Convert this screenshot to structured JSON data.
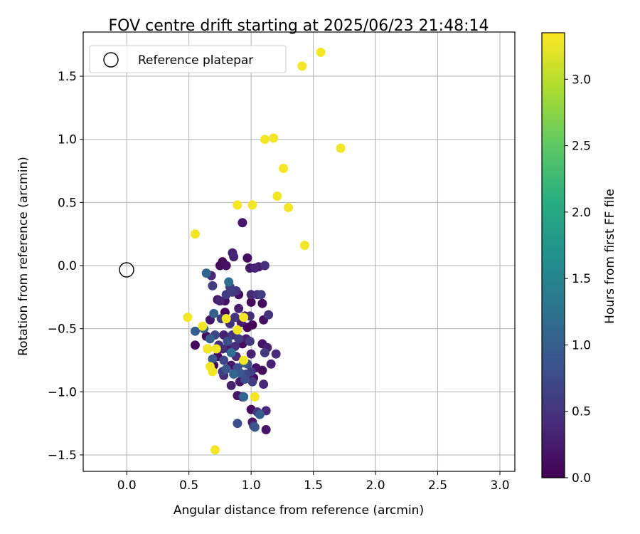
{
  "chart_data": {
    "type": "scatter",
    "title": "FOV centre drift starting at 2025/06/23 21:48:14",
    "xlabel": "Angular distance from reference (arcmin)",
    "ylabel": "Rotation from reference (arcmin)",
    "xlim": [
      -0.35,
      3.12
    ],
    "ylim": [
      -1.63,
      1.85
    ],
    "xticks": [
      0.0,
      0.5,
      1.0,
      1.5,
      2.0,
      2.5,
      3.0
    ],
    "xtick_labels": [
      "0.0",
      "0.5",
      "1.0",
      "1.5",
      "2.0",
      "2.5",
      "3.0"
    ],
    "yticks": [
      -1.5,
      -1.0,
      -0.5,
      0.0,
      0.5,
      1.0,
      1.5
    ],
    "ytick_labels": [
      "−1.5",
      "−1.0",
      "−0.5",
      "0.0",
      "0.5",
      "1.0",
      "1.5"
    ],
    "grid": true,
    "legend": {
      "position": "top-left",
      "entries": [
        "Reference platepar"
      ]
    },
    "reference_point": {
      "x": 0.0,
      "y": 0.0,
      "marker": "open-circle",
      "color": "#000000"
    },
    "colorbar": {
      "label": "Hours from first FF file",
      "colormap": "viridis",
      "min": 0.0,
      "max": 3.35,
      "ticks": [
        0.0,
        0.5,
        1.0,
        1.5,
        2.0,
        2.5,
        3.0
      ],
      "tick_labels": [
        "0.0",
        "0.5",
        "1.0",
        "1.5",
        "2.0",
        "2.5",
        "3.0"
      ]
    },
    "points": [
      {
        "x": 0.8,
        "y": 0.0,
        "t": 0.15
      },
      {
        "x": 0.85,
        "y": 0.1,
        "t": 0.3
      },
      {
        "x": 0.86,
        "y": 0.07,
        "t": 0.35
      },
      {
        "x": 0.97,
        "y": 0.06,
        "t": 0.1
      },
      {
        "x": 0.93,
        "y": 0.34,
        "t": 0.2
      },
      {
        "x": 0.99,
        "y": -0.02,
        "t": 0.2
      },
      {
        "x": 1.03,
        "y": -0.02,
        "t": 0.35
      },
      {
        "x": 1.06,
        "y": -0.01,
        "t": 0.25
      },
      {
        "x": 1.11,
        "y": 0.0,
        "t": 0.45
      },
      {
        "x": 0.75,
        "y": 0.0,
        "t": 0.1
      },
      {
        "x": 0.77,
        "y": 0.03,
        "t": 0.05
      },
      {
        "x": 0.68,
        "y": -0.08,
        "t": 0.4
      },
      {
        "x": 0.64,
        "y": -0.06,
        "t": 1.1
      },
      {
        "x": 0.69,
        "y": -0.16,
        "t": 0.6
      },
      {
        "x": 0.82,
        "y": -0.13,
        "t": 1.2
      },
      {
        "x": 0.83,
        "y": -0.17,
        "t": 0.6
      },
      {
        "x": 0.85,
        "y": -0.21,
        "t": 0.55
      },
      {
        "x": 0.88,
        "y": -0.2,
        "t": 0.5
      },
      {
        "x": 0.9,
        "y": -0.23,
        "t": 0.1
      },
      {
        "x": 0.8,
        "y": -0.23,
        "t": 0.6
      },
      {
        "x": 0.73,
        "y": -0.27,
        "t": 0.2
      },
      {
        "x": 0.75,
        "y": -0.28,
        "t": 0.35
      },
      {
        "x": 0.79,
        "y": -0.28,
        "t": 0.15
      },
      {
        "x": 1.0,
        "y": -0.23,
        "t": 0.4
      },
      {
        "x": 1.05,
        "y": -0.23,
        "t": 0.5
      },
      {
        "x": 1.08,
        "y": -0.23,
        "t": 0.6
      },
      {
        "x": 1.0,
        "y": -0.29,
        "t": 0.05
      },
      {
        "x": 1.09,
        "y": -0.3,
        "t": 0.1
      },
      {
        "x": 0.9,
        "y": -0.34,
        "t": 0.3
      },
      {
        "x": 0.79,
        "y": -0.37,
        "t": 0.05
      },
      {
        "x": 0.7,
        "y": -0.38,
        "t": 1.0
      },
      {
        "x": 0.67,
        "y": -0.43,
        "t": 0.2
      },
      {
        "x": 0.76,
        "y": -0.42,
        "t": 0.6
      },
      {
        "x": 0.8,
        "y": -0.42,
        "t": 0.05
      },
      {
        "x": 0.83,
        "y": -0.46,
        "t": 0.45
      },
      {
        "x": 0.87,
        "y": -0.41,
        "t": 0.5
      },
      {
        "x": 0.92,
        "y": -0.45,
        "t": 0.25
      },
      {
        "x": 0.95,
        "y": -0.4,
        "t": 0.15
      },
      {
        "x": 0.99,
        "y": -0.4,
        "t": 0.45
      },
      {
        "x": 1.01,
        "y": -0.47,
        "t": 0.05
      },
      {
        "x": 0.97,
        "y": -0.49,
        "t": 0.05
      },
      {
        "x": 1.1,
        "y": -0.43,
        "t": 0.15
      },
      {
        "x": 1.14,
        "y": -0.39,
        "t": 0.5
      },
      {
        "x": 0.55,
        "y": -0.52,
        "t": 1.0
      },
      {
        "x": 0.62,
        "y": -0.5,
        "t": 1.0
      },
      {
        "x": 0.64,
        "y": -0.56,
        "t": 0.1
      },
      {
        "x": 0.67,
        "y": -0.58,
        "t": 1.0
      },
      {
        "x": 0.71,
        "y": -0.55,
        "t": 0.7
      },
      {
        "x": 0.78,
        "y": -0.55,
        "t": 0.3
      },
      {
        "x": 0.81,
        "y": -0.6,
        "t": 0.8
      },
      {
        "x": 0.85,
        "y": -0.55,
        "t": 0.5
      },
      {
        "x": 0.9,
        "y": -0.58,
        "t": 0.6
      },
      {
        "x": 0.93,
        "y": -0.62,
        "t": 0.1
      },
      {
        "x": 0.96,
        "y": -0.58,
        "t": 0.3
      },
      {
        "x": 0.99,
        "y": -0.6,
        "t": 0.55
      },
      {
        "x": 0.55,
        "y": -0.63,
        "t": 0.1
      },
      {
        "x": 0.74,
        "y": -0.63,
        "t": 0.45
      },
      {
        "x": 0.77,
        "y": -0.66,
        "t": 0.4
      },
      {
        "x": 0.82,
        "y": -0.66,
        "t": 0.2
      },
      {
        "x": 0.87,
        "y": -0.64,
        "t": 0.45
      },
      {
        "x": 1.09,
        "y": -0.62,
        "t": 0.2
      },
      {
        "x": 1.13,
        "y": -0.65,
        "t": 0.3
      },
      {
        "x": 1.11,
        "y": -0.69,
        "t": 0.55
      },
      {
        "x": 1.2,
        "y": -0.7,
        "t": 0.4
      },
      {
        "x": 0.65,
        "y": -0.66,
        "t": 0.5
      },
      {
        "x": 0.69,
        "y": -0.74,
        "t": 0.9
      },
      {
        "x": 0.73,
        "y": -0.72,
        "t": 0.1
      },
      {
        "x": 0.78,
        "y": -0.75,
        "t": 0.7
      },
      {
        "x": 0.84,
        "y": -0.69,
        "t": 1.2
      },
      {
        "x": 0.88,
        "y": -0.72,
        "t": 0.4
      },
      {
        "x": 1.0,
        "y": -0.7,
        "t": 0.3
      },
      {
        "x": 1.16,
        "y": -0.78,
        "t": 0.3
      },
      {
        "x": 0.7,
        "y": -0.79,
        "t": 0.1
      },
      {
        "x": 0.77,
        "y": -0.84,
        "t": 0.6
      },
      {
        "x": 0.8,
        "y": -0.82,
        "t": 0.9
      },
      {
        "x": 0.84,
        "y": -0.79,
        "t": 0.2
      },
      {
        "x": 0.89,
        "y": -0.81,
        "t": 0.8
      },
      {
        "x": 0.94,
        "y": -0.77,
        "t": 1.0
      },
      {
        "x": 0.97,
        "y": -0.78,
        "t": 0.8
      },
      {
        "x": 1.04,
        "y": -0.81,
        "t": 0.2
      },
      {
        "x": 1.09,
        "y": -0.83,
        "t": 0.1
      },
      {
        "x": 0.78,
        "y": -0.87,
        "t": 0.4
      },
      {
        "x": 0.86,
        "y": -0.86,
        "t": 1.1
      },
      {
        "x": 0.91,
        "y": -0.85,
        "t": 0.9
      },
      {
        "x": 0.96,
        "y": -0.86,
        "t": 0.7
      },
      {
        "x": 1.0,
        "y": -0.84,
        "t": 0.6
      },
      {
        "x": 1.02,
        "y": -0.89,
        "t": 0.1
      },
      {
        "x": 0.84,
        "y": -0.95,
        "t": 0.3
      },
      {
        "x": 0.91,
        "y": -0.92,
        "t": 0.2
      },
      {
        "x": 0.95,
        "y": -0.9,
        "t": 0.8
      },
      {
        "x": 1.01,
        "y": -0.92,
        "t": 0.6
      },
      {
        "x": 1.1,
        "y": -0.94,
        "t": 0.4
      },
      {
        "x": 0.89,
        "y": -1.03,
        "t": 0.2
      },
      {
        "x": 0.93,
        "y": -1.04,
        "t": 0.3
      },
      {
        "x": 0.94,
        "y": -1.04,
        "t": 1.1
      },
      {
        "x": 1.0,
        "y": -1.14,
        "t": 0.1
      },
      {
        "x": 1.05,
        "y": -1.16,
        "t": 0.5
      },
      {
        "x": 1.07,
        "y": -1.18,
        "t": 1.0
      },
      {
        "x": 1.12,
        "y": -1.15,
        "t": 0.4
      },
      {
        "x": 0.89,
        "y": -1.25,
        "t": 0.8
      },
      {
        "x": 1.01,
        "y": -1.24,
        "t": 0.2
      },
      {
        "x": 1.02,
        "y": -1.27,
        "t": 0.6
      },
      {
        "x": 1.03,
        "y": -1.28,
        "t": 0.9
      },
      {
        "x": 1.12,
        "y": -1.3,
        "t": 0.2
      },
      {
        "x": 1.56,
        "y": 1.69,
        "t": 3.3
      },
      {
        "x": 1.41,
        "y": 1.58,
        "t": 3.3
      },
      {
        "x": 1.11,
        "y": 1.0,
        "t": 3.3
      },
      {
        "x": 1.18,
        "y": 1.01,
        "t": 3.3
      },
      {
        "x": 1.72,
        "y": 0.93,
        "t": 3.3
      },
      {
        "x": 1.26,
        "y": 0.77,
        "t": 3.3
      },
      {
        "x": 1.21,
        "y": 0.55,
        "t": 3.3
      },
      {
        "x": 0.89,
        "y": 0.48,
        "t": 3.3
      },
      {
        "x": 1.01,
        "y": 0.48,
        "t": 3.3
      },
      {
        "x": 1.3,
        "y": 0.46,
        "t": 3.3
      },
      {
        "x": 0.55,
        "y": 0.25,
        "t": 3.3
      },
      {
        "x": 1.43,
        "y": 0.16,
        "t": 3.3
      },
      {
        "x": 0.49,
        "y": -0.41,
        "t": 3.3
      },
      {
        "x": 0.8,
        "y": -0.42,
        "t": 3.3
      },
      {
        "x": 0.94,
        "y": -0.41,
        "t": 3.3
      },
      {
        "x": 0.61,
        "y": -0.48,
        "t": 3.3
      },
      {
        "x": 0.89,
        "y": -0.51,
        "t": 3.3
      },
      {
        "x": 0.65,
        "y": -0.66,
        "t": 3.3
      },
      {
        "x": 0.72,
        "y": -0.66,
        "t": 3.3
      },
      {
        "x": 0.94,
        "y": -0.75,
        "t": 3.3
      },
      {
        "x": 0.67,
        "y": -0.8,
        "t": 3.3
      },
      {
        "x": 0.69,
        "y": -0.84,
        "t": 3.3
      },
      {
        "x": 1.03,
        "y": -1.04,
        "t": 3.3
      },
      {
        "x": 0.71,
        "y": -1.46,
        "t": 3.3
      }
    ]
  }
}
